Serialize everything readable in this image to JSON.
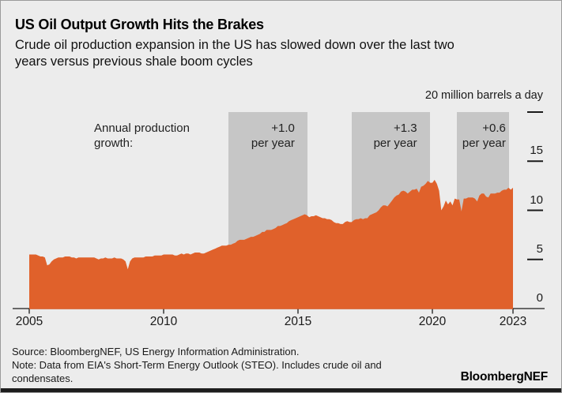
{
  "header": {
    "title": "US Oil Output Growth Hits the Brakes",
    "subtitle_line1": "Crude oil production expansion in the US has slowed down over the last two",
    "subtitle_line2": "years versus previous shale boom cycles"
  },
  "footer": {
    "source": "Source: BloombergNEF, US Energy Information Administration.",
    "note_line1": "Note: Data from EIA's Short-Term Energy Outlook (STEO). Includes crude oil and",
    "note_line2": "condensates.",
    "logo": "BloombergNEF"
  },
  "colors": {
    "background": "#ececec",
    "area": "#e0612b",
    "growth_box": "#c6c6c6",
    "axis": "#1a1a1a",
    "bottom_bar": "#1d1d1d"
  },
  "chart_data": {
    "type": "area",
    "title": "US Oil Output Growth Hits the Brakes",
    "unit_label": "20 million barrels a day",
    "ylabel": "million barrels a day",
    "xlabel": "",
    "xlim": [
      2005,
      2023
    ],
    "ylim": [
      0,
      20
    ],
    "grid": false,
    "legend_position": "none",
    "x_start_year": 2005,
    "points_per_year": 12,
    "x_ticks": [
      2005,
      2010,
      2015,
      2020,
      2023
    ],
    "y_ticks": [
      0,
      5,
      10,
      15,
      20
    ],
    "y_tick_labels_shown": [
      "0",
      "5",
      "10",
      "15"
    ],
    "series": [
      {
        "name": "US crude oil and condensates production (million barrels a day, monthly)",
        "values": [
          5.5,
          5.5,
          5.5,
          5.5,
          5.4,
          5.3,
          5.3,
          5.2,
          4.4,
          4.5,
          4.8,
          5.0,
          5.1,
          5.2,
          5.2,
          5.2,
          5.3,
          5.3,
          5.3,
          5.2,
          5.2,
          5.1,
          5.2,
          5.2,
          5.2,
          5.2,
          5.2,
          5.2,
          5.2,
          5.2,
          5.1,
          5.0,
          5.1,
          5.1,
          5.2,
          5.1,
          5.1,
          5.1,
          5.2,
          5.1,
          5.1,
          5.1,
          5.0,
          4.8,
          4.0,
          4.8,
          5.1,
          5.2,
          5.2,
          5.2,
          5.2,
          5.2,
          5.3,
          5.3,
          5.3,
          5.3,
          5.4,
          5.4,
          5.4,
          5.4,
          5.5,
          5.5,
          5.5,
          5.5,
          5.5,
          5.4,
          5.4,
          5.5,
          5.6,
          5.5,
          5.6,
          5.6,
          5.5,
          5.6,
          5.7,
          5.7,
          5.7,
          5.6,
          5.6,
          5.7,
          5.8,
          5.9,
          6.0,
          6.1,
          6.2,
          6.3,
          6.4,
          6.4,
          6.4,
          6.5,
          6.5,
          6.6,
          6.7,
          6.9,
          7.0,
          7.0,
          7.0,
          7.1,
          7.2,
          7.3,
          7.3,
          7.4,
          7.5,
          7.6,
          7.8,
          7.8,
          8.0,
          8.0,
          8.0,
          8.1,
          8.2,
          8.4,
          8.4,
          8.5,
          8.6,
          8.7,
          8.9,
          9.0,
          9.1,
          9.2,
          9.3,
          9.4,
          9.5,
          9.6,
          9.5,
          9.3,
          9.4,
          9.4,
          9.5,
          9.4,
          9.3,
          9.2,
          9.2,
          9.1,
          9.1,
          9.0,
          8.8,
          8.7,
          8.7,
          8.6,
          8.6,
          8.8,
          8.9,
          8.8,
          8.8,
          9.0,
          9.1,
          9.1,
          9.2,
          9.1,
          9.2,
          9.2,
          9.5,
          9.6,
          9.7,
          9.8,
          10.0,
          10.3,
          10.5,
          10.5,
          10.4,
          10.7,
          11.0,
          11.3,
          11.5,
          11.6,
          11.9,
          12.0,
          11.9,
          11.7,
          11.9,
          12.1,
          12.1,
          12.2,
          11.8,
          12.4,
          12.5,
          12.7,
          13.0,
          12.8,
          12.8,
          13.1,
          12.7,
          12.0,
          10.0,
          10.4,
          11.0,
          10.6,
          10.9,
          10.5,
          11.2,
          11.1,
          11.1,
          9.9,
          11.2,
          11.2,
          11.3,
          11.3,
          11.3,
          11.2,
          10.9,
          11.5,
          11.7,
          11.7,
          11.4,
          11.3,
          11.7,
          11.7,
          11.7,
          11.8,
          11.8,
          12.0,
          12.1,
          12.1,
          12.3,
          12.1,
          12.3
        ]
      }
    ],
    "annotations": {
      "intro_label": "Annual production growth:",
      "boxes": [
        {
          "value": "+1.0",
          "suffix": "per year",
          "from_year": 2012.4,
          "to_year": 2015.35,
          "tight": false
        },
        {
          "value": "+1.3",
          "suffix": "per year",
          "from_year": 2017.0,
          "to_year": 2019.9,
          "tight": false
        },
        {
          "value": "+0.6",
          "suffix": "per year",
          "from_year": 2020.9,
          "to_year": 2022.85,
          "tight": true
        }
      ]
    }
  }
}
